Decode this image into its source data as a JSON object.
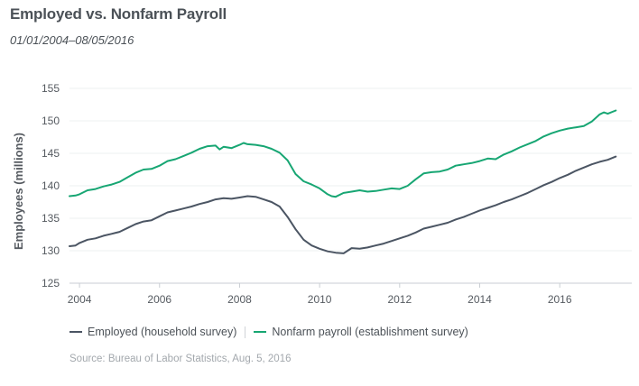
{
  "header": {
    "title": "Employed vs. Nonfarm Payroll",
    "subtitle": "01/01/2004–08/05/2016"
  },
  "footer": {
    "source": "Source:  Bureau of Labor Statistics, Aug. 5, 2016"
  },
  "chart_data": {
    "type": "line",
    "title": "Employed vs. Nonfarm Payroll",
    "xlabel": "",
    "ylabel": "Employees (millions)",
    "xlim": [
      2003.75,
      2017.8
    ],
    "ylim": [
      125,
      155
    ],
    "x_ticks": [
      2004,
      2006,
      2008,
      2010,
      2012,
      2014,
      2016
    ],
    "x_tick_labels": [
      "2004",
      "2006",
      "2008",
      "2010",
      "2012",
      "2014",
      "2016"
    ],
    "y_ticks": [
      125,
      130,
      135,
      140,
      145,
      150,
      155
    ],
    "y_tick_labels": [
      "125",
      "130",
      "135",
      "140",
      "145",
      "150",
      "155"
    ],
    "grid": true,
    "legend_position": "bottom-left",
    "series": [
      {
        "name": "Employed (household survey)",
        "color": "#4b5563",
        "x": [
          2003.75,
          2003.9,
          2004.0,
          2004.2,
          2004.4,
          2004.6,
          2004.8,
          2005.0,
          2005.2,
          2005.4,
          2005.6,
          2005.8,
          2006.0,
          2006.2,
          2006.4,
          2006.6,
          2006.8,
          2007.0,
          2007.2,
          2007.4,
          2007.6,
          2007.8,
          2008.0,
          2008.2,
          2008.4,
          2008.6,
          2008.8,
          2009.0,
          2009.2,
          2009.4,
          2009.6,
          2009.8,
          2010.0,
          2010.2,
          2010.4,
          2010.6,
          2010.8,
          2011.0,
          2011.2,
          2011.4,
          2011.6,
          2011.8,
          2012.0,
          2012.2,
          2012.4,
          2012.6,
          2012.8,
          2013.0,
          2013.2,
          2013.4,
          2013.6,
          2013.8,
          2014.0,
          2014.2,
          2014.4,
          2014.6,
          2014.8,
          2015.0,
          2015.2,
          2015.4,
          2015.6,
          2015.8,
          2016.0,
          2016.2,
          2016.4,
          2016.6,
          2016.8,
          2017.0,
          2017.2,
          2017.4
        ],
        "values": [
          130.7,
          130.8,
          131.2,
          131.7,
          131.9,
          132.3,
          132.6,
          132.9,
          133.5,
          134.1,
          134.5,
          134.7,
          135.3,
          135.9,
          136.2,
          136.5,
          136.8,
          137.2,
          137.5,
          137.9,
          138.1,
          138.0,
          138.2,
          138.4,
          138.3,
          137.9,
          137.5,
          136.8,
          135.2,
          133.3,
          131.7,
          130.8,
          130.3,
          129.9,
          129.7,
          129.6,
          130.4,
          130.3,
          130.5,
          130.8,
          131.1,
          131.5,
          131.9,
          132.3,
          132.8,
          133.4,
          133.7,
          134.0,
          134.3,
          134.8,
          135.2,
          135.7,
          136.2,
          136.6,
          137.0,
          137.5,
          137.9,
          138.4,
          138.9,
          139.5,
          140.1,
          140.6,
          141.2,
          141.7,
          142.3,
          142.8,
          143.3,
          143.7,
          144.0,
          144.5
        ]
      },
      {
        "name": "Nonfarm payroll (establishment survey)",
        "color": "#17a673",
        "x": [
          2003.75,
          2003.9,
          2004.0,
          2004.2,
          2004.4,
          2004.6,
          2004.8,
          2005.0,
          2005.2,
          2005.4,
          2005.6,
          2005.8,
          2006.0,
          2006.2,
          2006.4,
          2006.6,
          2006.8,
          2007.0,
          2007.2,
          2007.4,
          2007.5,
          2007.6,
          2007.8,
          2008.0,
          2008.1,
          2008.2,
          2008.4,
          2008.6,
          2008.8,
          2009.0,
          2009.2,
          2009.4,
          2009.6,
          2009.8,
          2010.0,
          2010.2,
          2010.3,
          2010.4,
          2010.6,
          2010.8,
          2011.0,
          2011.2,
          2011.4,
          2011.6,
          2011.8,
          2012.0,
          2012.2,
          2012.4,
          2012.6,
          2012.8,
          2013.0,
          2013.2,
          2013.4,
          2013.6,
          2013.8,
          2014.0,
          2014.2,
          2014.4,
          2014.6,
          2014.8,
          2015.0,
          2015.2,
          2015.4,
          2015.6,
          2015.8,
          2016.0,
          2016.2,
          2016.4,
          2016.6,
          2016.8,
          2017.0,
          2017.1,
          2017.2,
          2017.4
        ],
        "values": [
          138.4,
          138.5,
          138.7,
          139.3,
          139.5,
          139.9,
          140.2,
          140.6,
          141.3,
          142.0,
          142.5,
          142.6,
          143.1,
          143.8,
          144.1,
          144.6,
          145.1,
          145.7,
          146.1,
          146.2,
          145.6,
          146.0,
          145.8,
          146.3,
          146.6,
          146.4,
          146.3,
          146.1,
          145.7,
          145.1,
          143.9,
          141.8,
          140.7,
          140.2,
          139.6,
          138.7,
          138.4,
          138.3,
          138.9,
          139.1,
          139.3,
          139.1,
          139.2,
          139.4,
          139.6,
          139.5,
          140.0,
          141.0,
          141.9,
          142.1,
          142.2,
          142.5,
          143.1,
          143.3,
          143.5,
          143.8,
          144.2,
          144.1,
          144.8,
          145.3,
          145.9,
          146.4,
          146.9,
          147.6,
          148.1,
          148.5,
          148.8,
          149.0,
          149.2,
          149.9,
          151.0,
          151.3,
          151.1,
          151.6
        ]
      }
    ]
  }
}
